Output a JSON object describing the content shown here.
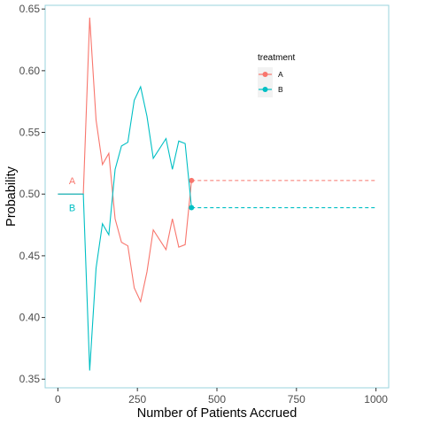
{
  "chart_data": {
    "type": "line",
    "title": "",
    "xlabel": "Number of Patients Accrued",
    "ylabel": "Probability",
    "xlim": [
      -40,
      1040
    ],
    "ylim": [
      0.343,
      0.653
    ],
    "x_ticks": [
      0,
      250,
      500,
      750,
      1000
    ],
    "x_tick_labels": [
      "0",
      "250",
      "500",
      "750",
      "1000"
    ],
    "y_ticks": [
      0.35,
      0.4,
      0.45,
      0.5,
      0.55,
      0.6,
      0.65
    ],
    "y_tick_labels": [
      "0.35",
      "0.40",
      "0.45",
      "0.50",
      "0.55",
      "0.60",
      "0.65"
    ],
    "grid": false,
    "legend": {
      "title": "treatment",
      "position": "top-right",
      "entries": [
        "A",
        "B"
      ]
    },
    "series": [
      {
        "name": "A",
        "color": "#F8766D",
        "x": [
          0,
          20,
          40,
          60,
          80,
          100,
          120,
          140,
          160,
          180,
          200,
          220,
          240,
          260,
          280,
          300,
          320,
          340,
          360,
          380,
          400,
          420
        ],
        "y": [
          0.5,
          0.5,
          0.5,
          0.5,
          0.5,
          0.643,
          0.56,
          0.524,
          0.533,
          0.48,
          0.461,
          0.458,
          0.424,
          0.413,
          0.437,
          0.471,
          0.463,
          0.455,
          0.48,
          0.457,
          0.459,
          0.511
        ],
        "projection": {
          "x": [
            420,
            1000
          ],
          "y": [
            0.511,
            0.511
          ]
        },
        "endpoint": {
          "x": 420,
          "y": 0.511
        }
      },
      {
        "name": "B",
        "color": "#00BFC4",
        "x": [
          0,
          20,
          40,
          60,
          80,
          100,
          120,
          140,
          160,
          180,
          200,
          220,
          240,
          260,
          280,
          300,
          320,
          340,
          360,
          380,
          400,
          420
        ],
        "y": [
          0.5,
          0.5,
          0.5,
          0.5,
          0.5,
          0.357,
          0.44,
          0.476,
          0.467,
          0.52,
          0.539,
          0.542,
          0.576,
          0.587,
          0.563,
          0.529,
          0.537,
          0.545,
          0.52,
          0.543,
          0.541,
          0.489
        ],
        "projection": {
          "x": [
            420,
            1000
          ],
          "y": [
            0.489,
            0.489
          ]
        },
        "endpoint": {
          "x": 420,
          "y": 0.489
        }
      }
    ],
    "annotations": [
      {
        "text": "A",
        "x": 45,
        "y": 0.511,
        "series": "A"
      },
      {
        "text": "B",
        "x": 45,
        "y": 0.489,
        "series": "B"
      }
    ]
  }
}
